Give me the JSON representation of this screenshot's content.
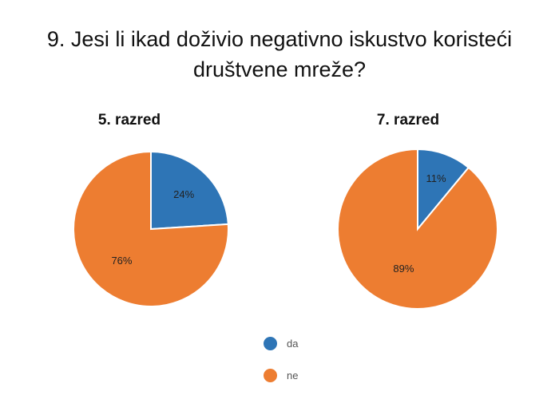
{
  "title_line1": "9. Jesi li ikad doživio negativno iskustvo koristeći",
  "title_line2": "društvene mreže?",
  "colors": {
    "da": "#2e75b6",
    "ne": "#ed7d31"
  },
  "chart_data": [
    {
      "type": "pie",
      "title": "5. razred",
      "categories": [
        "da",
        "ne"
      ],
      "values": [
        24,
        76
      ],
      "labels": [
        "24%",
        "76%"
      ]
    },
    {
      "type": "pie",
      "title": "7. razred",
      "categories": [
        "da",
        "ne"
      ],
      "values": [
        11,
        89
      ],
      "labels": [
        "11%",
        "89%"
      ]
    }
  ],
  "legend": [
    {
      "label": "da",
      "color": "#2e75b6"
    },
    {
      "label": "ne",
      "color": "#ed7d31"
    }
  ]
}
